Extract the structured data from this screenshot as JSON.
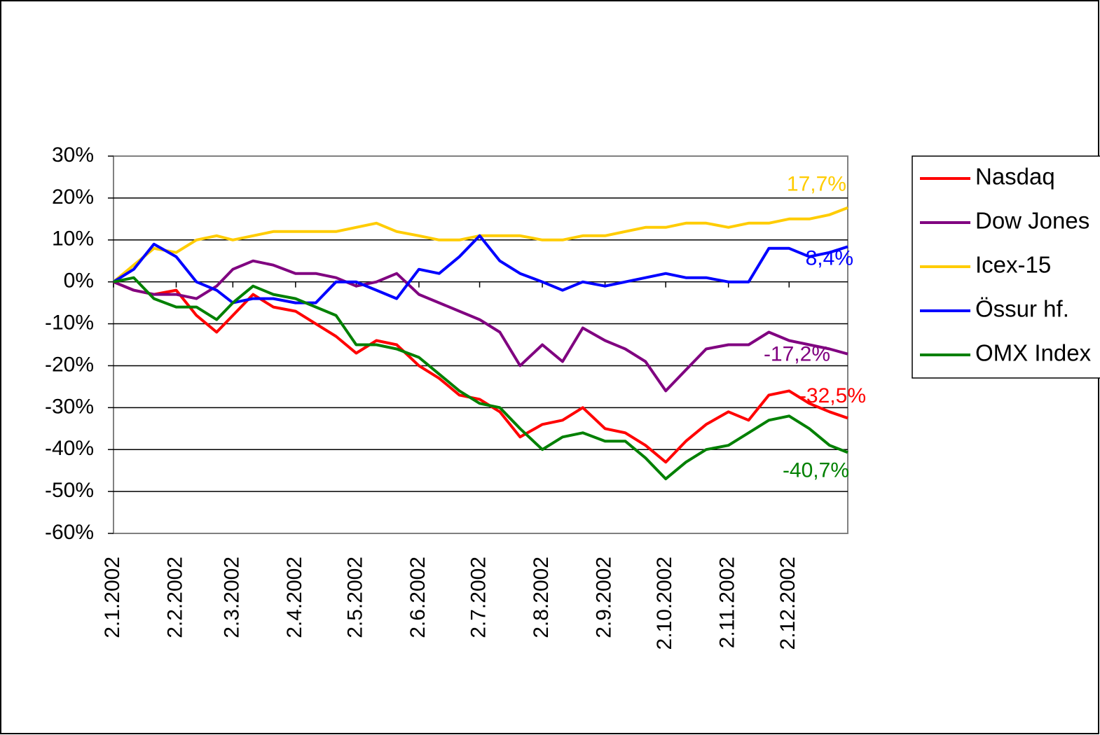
{
  "chart_data": {
    "type": "line",
    "x": [
      "2.1.2002",
      "12.1.2002",
      "22.1.2002",
      "2.2.2002",
      "12.2.2002",
      "22.2.2002",
      "2.3.2002",
      "12.3.2002",
      "22.3.2002",
      "2.4.2002",
      "12.4.2002",
      "22.4.2002",
      "2.5.2002",
      "12.5.2002",
      "22.5.2002",
      "2.6.2002",
      "12.6.2002",
      "22.6.2002",
      "2.7.2002",
      "12.7.2002",
      "22.7.2002",
      "2.8.2002",
      "12.8.2002",
      "22.8.2002",
      "2.9.2002",
      "12.9.2002",
      "22.9.2002",
      "2.10.2002",
      "12.10.2002",
      "22.10.2002",
      "2.11.2002",
      "12.11.2002",
      "22.11.2002",
      "2.12.2002",
      "12.12.2002",
      "22.12.2002",
      "31.12.2002"
    ],
    "xlim": [
      "2.1.2002",
      "31.12.2002"
    ],
    "xticks": [
      "2.1.2002",
      "2.2.2002",
      "2.3.2002",
      "2.4.2002",
      "2.5.2002",
      "2.6.2002",
      "2.7.2002",
      "2.8.2002",
      "2.9.2002",
      "2.10.2002",
      "2.11.2002",
      "2.12.2002"
    ],
    "ylim": [
      -60,
      30
    ],
    "yticks": [
      {
        "value": 30,
        "label": "30%"
      },
      {
        "value": 20,
        "label": "20%"
      },
      {
        "value": 10,
        "label": "10%"
      },
      {
        "value": 0,
        "label": "0%"
      },
      {
        "value": -10,
        "label": "-10%"
      },
      {
        "value": -20,
        "label": "-20%"
      },
      {
        "value": -30,
        "label": "-30%"
      },
      {
        "value": -40,
        "label": "-40%"
      },
      {
        "value": -50,
        "label": "-50%"
      },
      {
        "value": -60,
        "label": "-60%"
      }
    ],
    "grid": true,
    "legend": "right",
    "series": [
      {
        "name": "Nasdaq",
        "color": "#ff0000",
        "values": [
          0,
          -2,
          -3,
          -2,
          -8,
          -12,
          -8,
          -3,
          -6,
          -7,
          -10,
          -13,
          -17,
          -14,
          -15,
          -20,
          -23,
          -27,
          -28,
          -31,
          -37,
          -34,
          -33,
          -30,
          -35,
          -36,
          -39,
          -43,
          -38,
          -34,
          -31,
          -33,
          -27,
          -26,
          -29,
          -31,
          -32.5
        ],
        "value_labels": [
          null,
          null,
          null,
          null,
          null,
          null,
          null,
          null,
          null,
          null,
          null,
          null,
          null,
          null,
          null,
          null,
          null,
          null,
          null,
          null,
          null,
          null,
          null,
          null,
          null,
          null,
          null,
          null,
          null,
          null,
          null,
          null,
          null,
          null,
          null,
          null,
          "-32,5%"
        ]
      },
      {
        "name": "Dow Jones",
        "color": "#800080",
        "values": [
          0,
          -2,
          -3,
          -3,
          -4,
          -1,
          3,
          5,
          4,
          2,
          2,
          1,
          -1,
          0,
          2,
          -3,
          -5,
          -7,
          -9,
          -12,
          -20,
          -15,
          -19,
          -11,
          -14,
          -16,
          -19,
          -26,
          -21,
          -16,
          -15,
          -15,
          -12,
          -14,
          -15,
          -16,
          -17.2
        ],
        "value_labels": [
          null,
          null,
          null,
          null,
          null,
          null,
          null,
          null,
          null,
          null,
          null,
          null,
          null,
          null,
          null,
          null,
          null,
          null,
          null,
          null,
          null,
          null,
          null,
          null,
          null,
          null,
          null,
          null,
          null,
          null,
          null,
          null,
          null,
          null,
          null,
          null,
          "-17,2%"
        ]
      },
      {
        "name": "Icex-15",
        "color": "#ffcc00",
        "values": [
          0,
          4,
          8,
          7,
          10,
          11,
          10,
          11,
          12,
          12,
          12,
          12,
          13,
          14,
          12,
          11,
          10,
          10,
          11,
          11,
          11,
          10,
          10,
          11,
          11,
          12,
          13,
          13,
          14,
          14,
          13,
          14,
          14,
          15,
          15,
          16,
          17.7
        ],
        "value_labels": [
          null,
          null,
          null,
          null,
          null,
          null,
          null,
          null,
          null,
          null,
          null,
          null,
          null,
          null,
          null,
          null,
          null,
          null,
          null,
          null,
          null,
          null,
          null,
          null,
          null,
          null,
          null,
          null,
          null,
          null,
          null,
          null,
          null,
          null,
          null,
          null,
          "17,7%"
        ]
      },
      {
        "name": "Össur hf.",
        "color": "#0000ff",
        "values": [
          0,
          3,
          9,
          6,
          0,
          -2,
          -5,
          -4,
          -4,
          -5,
          -5,
          0,
          0,
          -2,
          -4,
          3,
          2,
          6,
          11,
          5,
          2,
          0,
          -2,
          0,
          -1,
          0,
          1,
          2,
          1,
          1,
          0,
          0,
          8,
          8,
          6,
          7,
          8.4
        ],
        "value_labels": [
          null,
          null,
          null,
          null,
          null,
          null,
          null,
          null,
          null,
          null,
          null,
          null,
          null,
          null,
          null,
          null,
          null,
          null,
          null,
          null,
          null,
          null,
          null,
          null,
          null,
          null,
          null,
          null,
          null,
          null,
          null,
          null,
          null,
          null,
          null,
          null,
          "8,4%"
        ]
      },
      {
        "name": "OMX Index",
        "color": "#008000",
        "values": [
          0,
          1,
          -4,
          -6,
          -6,
          -9,
          -5,
          -1,
          -3,
          -4,
          -6,
          -8,
          -15,
          -15,
          -16,
          -18,
          -22,
          -26,
          -29,
          -30,
          -35,
          -40,
          -37,
          -36,
          -38,
          -38,
          -42,
          -47,
          -43,
          -40,
          -39,
          -36,
          -33,
          -32,
          -35,
          -39,
          -40.7
        ],
        "value_labels": [
          null,
          null,
          null,
          null,
          null,
          null,
          null,
          null,
          null,
          null,
          null,
          null,
          null,
          null,
          null,
          null,
          null,
          null,
          null,
          null,
          null,
          null,
          null,
          null,
          null,
          null,
          null,
          null,
          null,
          null,
          null,
          null,
          null,
          null,
          null,
          null,
          "-40,7%"
        ]
      }
    ]
  }
}
